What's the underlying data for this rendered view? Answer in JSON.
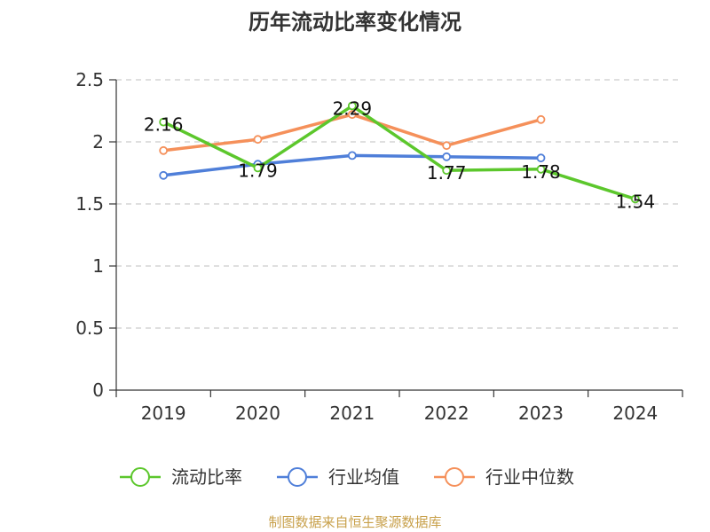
{
  "chart_data": {
    "type": "line",
    "title": "历年流动比率变化情况",
    "categories": [
      "2019",
      "2020",
      "2021",
      "2022",
      "2023",
      "2024"
    ],
    "ylim": [
      0,
      2.5
    ],
    "yticks": [
      "0",
      "0.5",
      "1",
      "1.5",
      "2",
      "2.5"
    ],
    "grid": true,
    "legend": "bottom",
    "series": [
      {
        "name": "流动比率",
        "color": "#5cc72c",
        "values": [
          2.16,
          1.79,
          2.29,
          1.77,
          1.78,
          1.54
        ],
        "labels": [
          "2.16",
          "1.79",
          "2.29",
          "1.77",
          "1.78",
          "1.54"
        ]
      },
      {
        "name": "行业均值",
        "color": "#4f7fd9",
        "values": [
          1.73,
          1.82,
          1.89,
          1.88,
          1.87,
          null
        ]
      },
      {
        "name": "行业中位数",
        "color": "#f5905a",
        "values": [
          1.93,
          2.02,
          2.22,
          1.97,
          2.18,
          null
        ]
      }
    ]
  },
  "source": "制图数据来自恒生聚源数据库"
}
